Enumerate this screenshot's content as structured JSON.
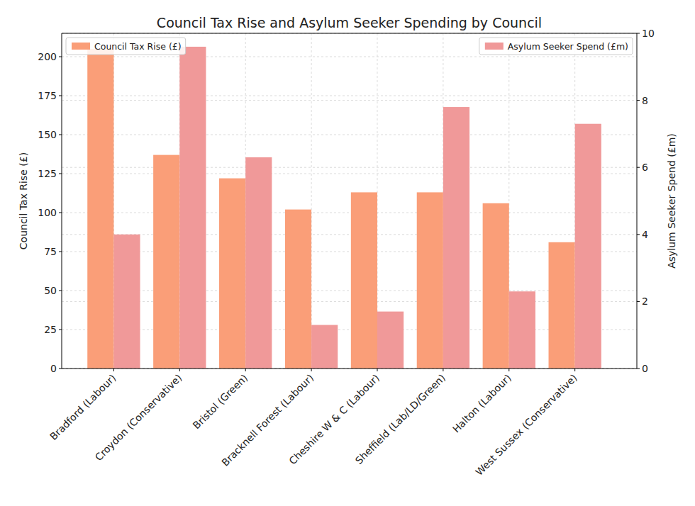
{
  "chart_data": {
    "type": "bar",
    "title": "Council Tax Rise and Asylum Seeker Spending by Council",
    "categories": [
      "Bradford (Labour)",
      "Croydon (Conservative)",
      "Bristol (Green)",
      "Bracknell Forest (Labour)",
      "Cheshire W & C (Labour)",
      "Sheffield (Lab/LD/Green)",
      "Halton (Labour)",
      "West Sussex (Conservative)"
    ],
    "y_label": "Council Tax Rise (£)",
    "y2_label": "Asylum Seeker Spend (£m)",
    "series": [
      {
        "name": "Council Tax Rise (£)",
        "color": "#fa9e78",
        "values": [
          205,
          137,
          122,
          102,
          113,
          113,
          106,
          81
        ]
      },
      {
        "name": "Asylum Seeker Spend (£m)",
        "color": "#f09999",
        "axis": "y2",
        "values": [
          4.0,
          9.6,
          6.3,
          1.3,
          1.7,
          7.8,
          2.3,
          7.3
        ]
      }
    ],
    "ylim": [
      0,
      215
    ],
    "yticks": [
      0,
      25,
      50,
      75,
      100,
      125,
      150,
      175,
      200
    ],
    "y2lim": [
      0,
      10
    ],
    "y2ticks": [
      0,
      2,
      4,
      6,
      8,
      10
    ],
    "grid": true,
    "legend": "top"
  }
}
